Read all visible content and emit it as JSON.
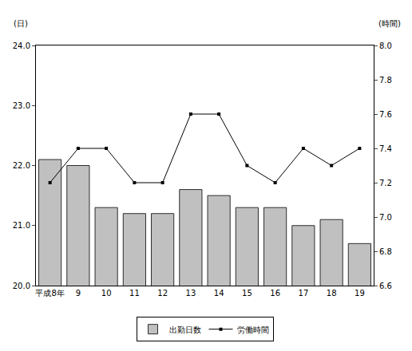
{
  "chart_data": {
    "type": "bar",
    "categories": [
      "平成8年",
      "9",
      "10",
      "11",
      "12",
      "13",
      "14",
      "15",
      "16",
      "17",
      "18",
      "19"
    ],
    "series": [
      {
        "name": "出勤日数",
        "type": "bar",
        "color": "#c0c0c0",
        "values": [
          22.1,
          22.0,
          21.3,
          21.2,
          21.2,
          21.6,
          21.5,
          21.3,
          21.3,
          21.0,
          21.1,
          20.7
        ]
      },
      {
        "name": "労働時間",
        "type": "line",
        "axis": "y2",
        "color": "#000000",
        "marker": "square",
        "line_style": "solid",
        "values": [
          7.2,
          7.4,
          7.4,
          7.2,
          7.2,
          7.6,
          7.6,
          7.3,
          7.2,
          7.4,
          7.3,
          7.4
        ]
      }
    ],
    "y_label": "(日)",
    "y2_label": "(時間)",
    "ylim": [
      20,
      24
    ],
    "yticks": [
      {
        "value": 20,
        "label": "20.0"
      },
      {
        "value": 21,
        "label": "21.0"
      },
      {
        "value": 22,
        "label": "22.0"
      },
      {
        "value": 23,
        "label": "23.0"
      },
      {
        "value": 24,
        "label": "24.0"
      }
    ],
    "y2lim": [
      6.6,
      8.0
    ],
    "y2ticks": [
      6.6,
      6.8,
      {
        "value": 7,
        "label": "7.0"
      },
      7.2,
      7.4,
      7.6,
      7.8,
      {
        "value": 8,
        "label": "8.0"
      }
    ],
    "grid": false,
    "legend": "bottom"
  }
}
